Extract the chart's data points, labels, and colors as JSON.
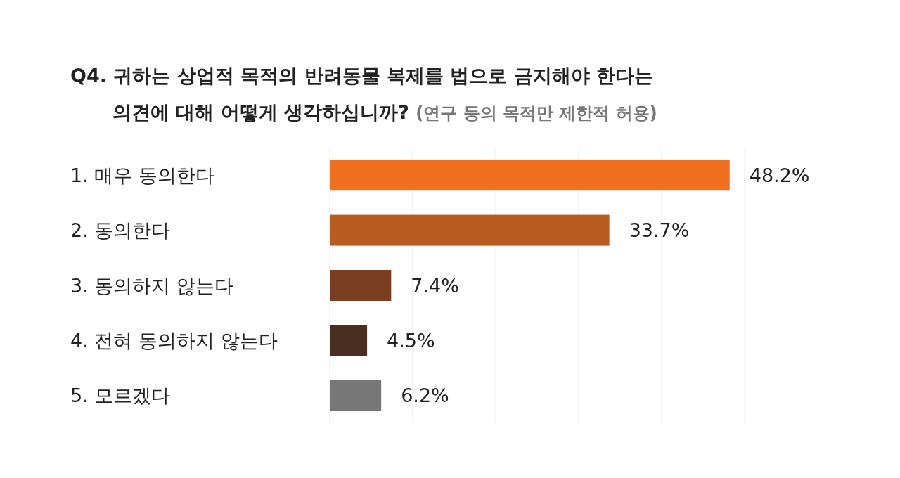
{
  "chart_data": {
    "type": "bar",
    "orientation": "horizontal",
    "title": "Q4. 귀하는 상업적 목적의 반려동물 복제를 법으로 금지해야 한다는\n의견에 대해 어떻게 생각하십니까?",
    "subtitle": "(연구 등의 목적만 제한적 허용)",
    "categories": [
      "1. 매우 동의한다",
      "2. 동의한다",
      "3. 동의하지 않는다",
      "4. 전혀 동의하지 않는다",
      "5. 모르겠다"
    ],
    "values": [
      48.2,
      33.7,
      7.4,
      4.5,
      6.2
    ],
    "value_labels": [
      "48.2%",
      "33.7%",
      "7.4%",
      "4.5%",
      "6.2%"
    ],
    "colors": [
      "#f07020",
      "#b85c22",
      "#7a3f20",
      "#4a2e20",
      "#777777"
    ],
    "xlim": [
      0,
      50
    ],
    "xticks": [
      {
        "value": 0,
        "label": null
      },
      {
        "value": 10,
        "label": null
      },
      {
        "value": 20,
        "label": null
      },
      {
        "value": 30,
        "label": null
      },
      {
        "value": 40,
        "label": null
      },
      {
        "value": 50,
        "label": null
      }
    ],
    "grid": "x"
  }
}
